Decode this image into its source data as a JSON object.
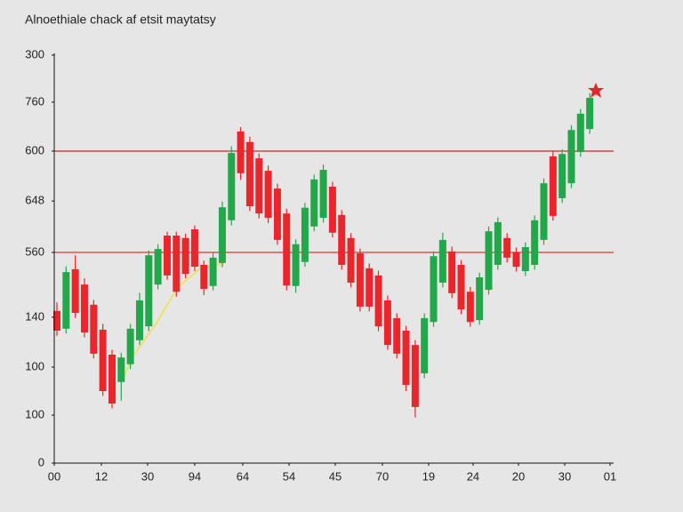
{
  "chart_data": {
    "type": "candlestick",
    "title": "Alnoethiale chack af etsit maytatsy",
    "x": [
      0,
      1,
      2,
      3,
      4,
      5,
      6,
      7,
      8,
      9,
      10,
      11,
      12,
      13,
      14,
      15,
      16,
      17,
      18,
      19,
      20,
      21,
      22,
      23,
      24,
      25,
      26,
      27,
      28,
      29,
      30,
      31,
      32,
      33,
      34,
      35,
      36,
      37,
      38,
      39,
      40,
      41,
      42,
      43,
      44,
      45,
      46,
      47,
      48,
      49,
      50,
      51,
      52,
      53,
      54,
      55,
      56,
      57,
      58
    ],
    "open": [
      317,
      280,
      404,
      372,
      330,
      278,
      226,
      169,
      206,
      256,
      285,
      372,
      474,
      474,
      469,
      487,
      413,
      369,
      417,
      506,
      691,
      669,
      635,
      609,
      572,
      520,
      369,
      419,
      493,
      511,
      576,
      517,
      469,
      437,
      406,
      391,
      339,
      302,
      276,
      246,
      187,
      294,
      376,
      441,
      413,
      357,
      298,
      361,
      413,
      469,
      439,
      400,
      413,
      465,
      639,
      552,
      583,
      648,
      696
    ],
    "high": [
      335,
      410,
      433,
      385,
      340,
      290,
      236,
      230,
      290,
      355,
      443,
      456,
      482,
      482,
      478,
      495,
      422,
      440,
      545,
      660,
      700,
      680,
      645,
      620,
      582,
      530,
      466,
      542,
      601,
      622,
      586,
      527,
      479,
      447,
      416,
      401,
      349,
      312,
      286,
      256,
      312,
      441,
      480,
      451,
      423,
      367,
      397,
      493,
      512,
      479,
      449,
      460,
      516,
      593,
      649,
      654,
      704,
      738,
      771
    ],
    "low": [
      265,
      270,
      302,
      262,
      218,
      140,
      114,
      130,
      196,
      246,
      275,
      362,
      382,
      347,
      385,
      400,
      350,
      360,
      408,
      495,
      590,
      525,
      510,
      500,
      455,
      360,
      355,
      409,
      483,
      501,
      470,
      403,
      366,
      316,
      316,
      275,
      236,
      218,
      150,
      95,
      177,
      284,
      366,
      344,
      310,
      284,
      288,
      351,
      403,
      418,
      399,
      390,
      403,
      455,
      505,
      542,
      573,
      638,
      686
    ],
    "close": [
      276,
      398,
      313,
      272,
      228,
      150,
      124,
      220,
      280,
      339,
      433,
      446,
      391,
      357,
      394,
      409,
      363,
      428,
      533,
      646,
      604,
      535,
      520,
      511,
      465,
      370,
      456,
      532,
      591,
      611,
      480,
      413,
      376,
      326,
      326,
      285,
      246,
      228,
      163,
      117,
      302,
      431,
      465,
      354,
      320,
      294,
      387,
      483,
      502,
      428,
      409,
      450,
      506,
      583,
      515,
      644,
      694,
      728,
      761
    ],
    "up_color": "#22a84a",
    "down_color": "#e8262b",
    "hlines": [
      650,
      439
    ],
    "hline_color": "#dd2222",
    "xlim": [
      -0.29,
      60.6
    ],
    "xticks": [
      {
        "value": -0.29,
        "label": "00"
      },
      {
        "value": 4.84,
        "label": "12"
      },
      {
        "value": 9.87,
        "label": "30"
      },
      {
        "value": 15.0,
        "label": "94"
      },
      {
        "value": 20.23,
        "label": "64"
      },
      {
        "value": 25.27,
        "label": "54"
      },
      {
        "value": 30.3,
        "label": "45"
      },
      {
        "value": 35.43,
        "label": "70"
      },
      {
        "value": 40.46,
        "label": "19"
      },
      {
        "value": 45.3,
        "label": "24"
      },
      {
        "value": 50.24,
        "label": "20"
      },
      {
        "value": 55.28,
        "label": "30"
      },
      {
        "value": 60.21,
        "label": "01"
      }
    ],
    "ylim": [
      0,
      850
    ],
    "yticks": [
      {
        "value": 850,
        "label": "300"
      },
      {
        "value": 752,
        "label": "760"
      },
      {
        "value": 650,
        "label": "600"
      },
      {
        "value": 546,
        "label": "648"
      },
      {
        "value": 439,
        "label": "560"
      },
      {
        "value": 304,
        "label": "140"
      },
      {
        "value": 200,
        "label": "100"
      },
      {
        "value": 100,
        "label": "100"
      },
      0
    ]
  }
}
